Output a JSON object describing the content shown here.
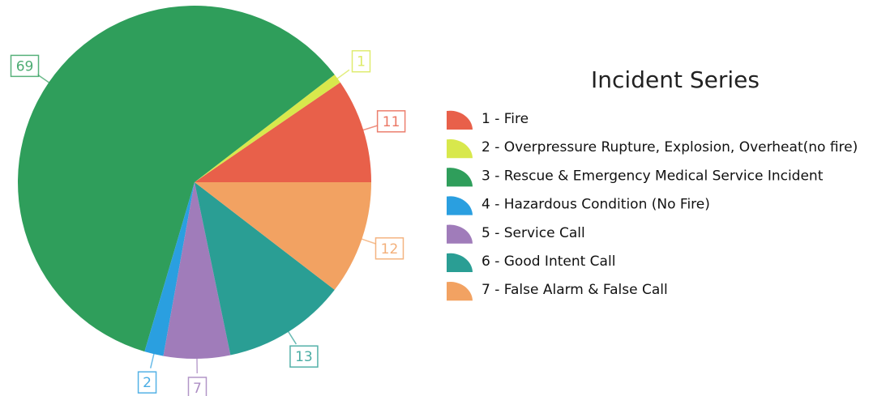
{
  "chart_data": {
    "type": "pie",
    "title": "Incident Series",
    "categories": [
      "1 - Fire",
      "2 - Overpressure Rupture, Explosion, Overheat(no fire)",
      "3 - Rescue & Emergency Medical Service Incident",
      "4 - Hazardous Condition (No Fire)",
      "5 - Service Call",
      "6 - Good Intent Call",
      "7 - False Alarm & False Call"
    ],
    "values": [
      11,
      1,
      69,
      2,
      7,
      13,
      12
    ],
    "colors": [
      "#e8604a",
      "#d8e84c",
      "#2f9e5b",
      "#2a9fe0",
      "#a07cba",
      "#2a9e94",
      "#f2a262"
    ]
  }
}
